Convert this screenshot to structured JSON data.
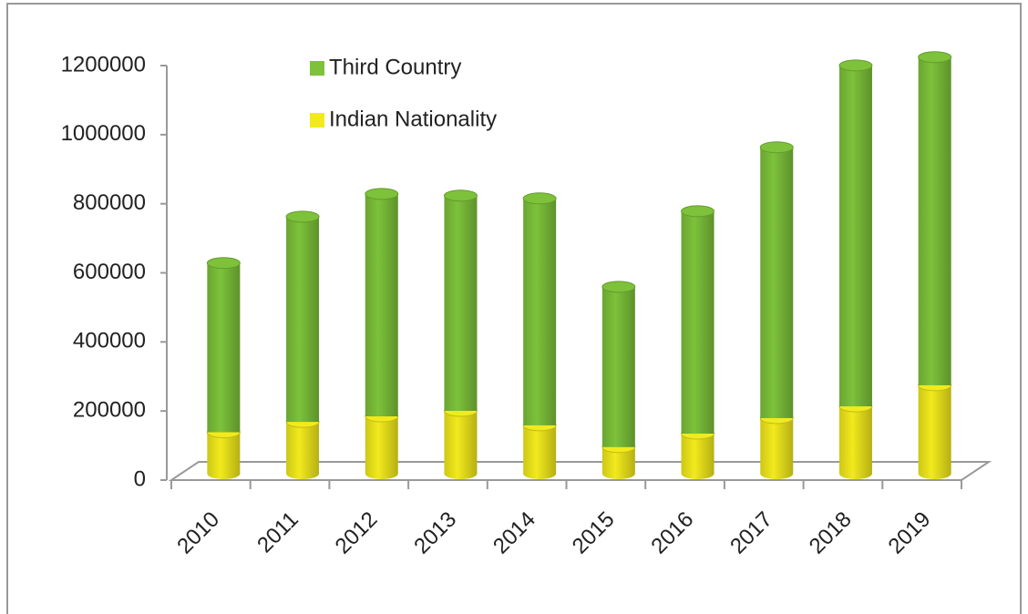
{
  "chart_data": {
    "type": "bar",
    "stacked": true,
    "categories": [
      "2010",
      "2011",
      "2012",
      "2013",
      "2014",
      "2015",
      "2016",
      "2017",
      "2018",
      "2019"
    ],
    "series": [
      {
        "name": "Third Country",
        "color": "#7dc23a",
        "values": [
          490000,
          594000,
          644000,
          623000,
          657000,
          464000,
          644000,
          784000,
          987000,
          950000
        ]
      },
      {
        "name": "Indian Nationality",
        "color": "#f2ea1c",
        "values": [
          120000,
          150000,
          166000,
          182000,
          140000,
          77000,
          116000,
          161000,
          195000,
          256000
        ]
      }
    ],
    "ylim": [
      0,
      1200000
    ],
    "yticks": [
      0,
      200000,
      400000,
      600000,
      800000,
      1000000,
      1200000
    ]
  }
}
